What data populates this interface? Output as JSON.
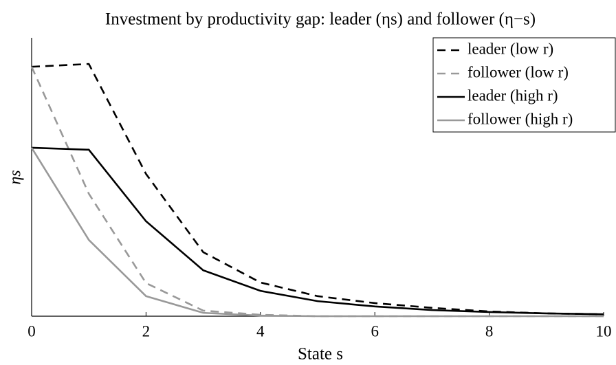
{
  "chart_data": {
    "type": "line",
    "title": "Investment by productivity gap: leader (ηs) and follower (η−s)",
    "x_label": "State s",
    "y_label": "ηs",
    "x": [
      0,
      1,
      2,
      3,
      4,
      5,
      6,
      7,
      8,
      9,
      10
    ],
    "xlim": [
      0,
      10
    ],
    "xticks": [
      0,
      2,
      4,
      6,
      8,
      10
    ],
    "ylim": [
      0,
      1
    ],
    "legend": "upper right",
    "series": [
      {
        "name": "leader (low r)",
        "color": "#000000",
        "dash": "dashed",
        "values": [
          0.896,
          0.906,
          0.511,
          0.23,
          0.121,
          0.072,
          0.047,
          0.03,
          0.017,
          0.01,
          0.007
        ]
      },
      {
        "name": "follower (low r)",
        "color": "#999999",
        "dash": "dashed",
        "values": [
          0.896,
          0.44,
          0.119,
          0.02,
          0.005,
          0,
          0,
          0,
          0,
          0,
          0
        ]
      },
      {
        "name": "leader (high r)",
        "color": "#000000",
        "dash": "solid",
        "values": [
          0.605,
          0.598,
          0.341,
          0.165,
          0.091,
          0.054,
          0.035,
          0.022,
          0.015,
          0.01,
          0.007
        ]
      },
      {
        "name": "follower (high r)",
        "color": "#999999",
        "dash": "solid",
        "values": [
          0.605,
          0.274,
          0.072,
          0.012,
          0.002,
          0,
          0,
          0,
          0,
          0,
          0
        ]
      }
    ]
  }
}
